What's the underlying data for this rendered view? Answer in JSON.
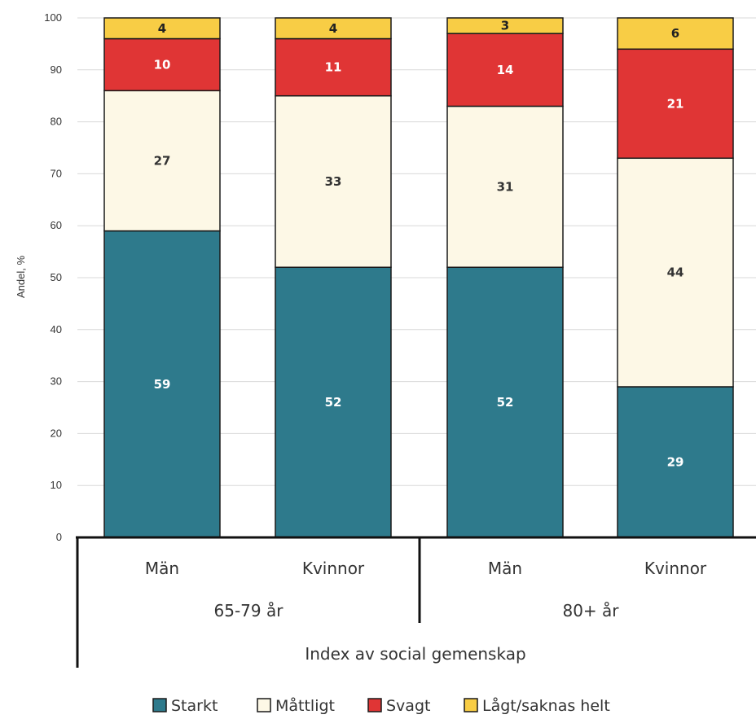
{
  "chart_data": {
    "type": "bar",
    "stacked": true,
    "ylabel": "Andel, %",
    "xlabel": "Index av social gemenskap",
    "ylim": [
      0,
      100
    ],
    "yticks": [
      0,
      10,
      20,
      30,
      40,
      50,
      60,
      70,
      80,
      90,
      100
    ],
    "grid": true,
    "legend_position": "bottom",
    "groups": [
      {
        "label": "65-79 år",
        "categories": [
          "Män",
          "Kvinnor"
        ]
      },
      {
        "label": "80+ år",
        "categories": [
          "Män",
          "Kvinnor"
        ]
      }
    ],
    "categories": [
      "Män",
      "Kvinnor",
      "Män",
      "Kvinnor"
    ],
    "series": [
      {
        "name": "Starkt",
        "color": "#2e7a8c",
        "label_color": "#ffffff",
        "values": [
          59,
          52,
          52,
          29
        ]
      },
      {
        "name": "Måttligt",
        "color": "#fdf8e6",
        "label_color": "#333333",
        "values": [
          27,
          33,
          31,
          44
        ]
      },
      {
        "name": "Svagt",
        "color": "#e03535",
        "label_color": "#ffffff",
        "values": [
          10,
          11,
          14,
          21
        ]
      },
      {
        "name": "Lågt/saknas helt",
        "color": "#f8cd45",
        "label_color": "#222222",
        "values": [
          4,
          4,
          3,
          6
        ]
      }
    ]
  }
}
